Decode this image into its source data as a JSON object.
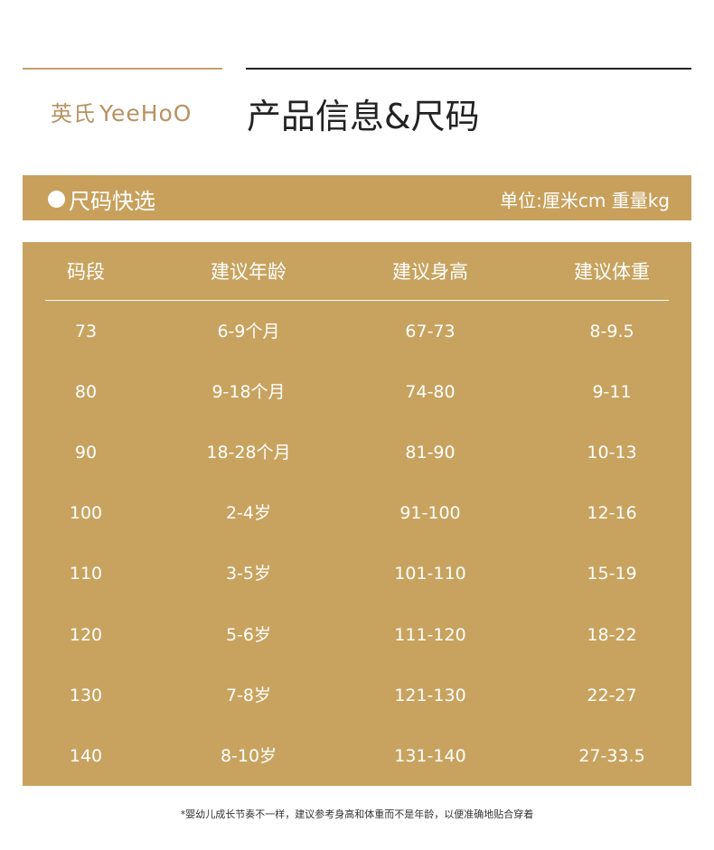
{
  "brand": {
    "name_cn": "英氏",
    "name_en": "YeeHoO"
  },
  "page_title": "产品信息&尺码",
  "section": {
    "title": "尺码快选",
    "units": "单位:厘米cm 重量kg"
  },
  "colors": {
    "gold": "#c8a35f",
    "text_dark": "#222222"
  },
  "table": {
    "headers": [
      "码段",
      "建议年龄",
      "建议身高",
      "建议体重"
    ],
    "rows": [
      [
        "73",
        "6-9个月",
        "67-73",
        "8-9.5"
      ],
      [
        "80",
        "9-18个月",
        "74-80",
        "9-11"
      ],
      [
        "90",
        "18-28个月",
        "81-90",
        "10-13"
      ],
      [
        "100",
        "2-4岁",
        "91-100",
        "12-16"
      ],
      [
        "110",
        "3-5岁",
        "101-110",
        "15-19"
      ],
      [
        "120",
        "5-6岁",
        "111-120",
        "18-22"
      ],
      [
        "130",
        "7-8岁",
        "121-130",
        "22-27"
      ],
      [
        "140",
        "8-10岁",
        "131-140",
        "27-33.5"
      ]
    ]
  },
  "footnote": "*婴幼儿成长节奏不一样，建议参考身高和体重而不是年龄，以便准确地贴合穿着"
}
